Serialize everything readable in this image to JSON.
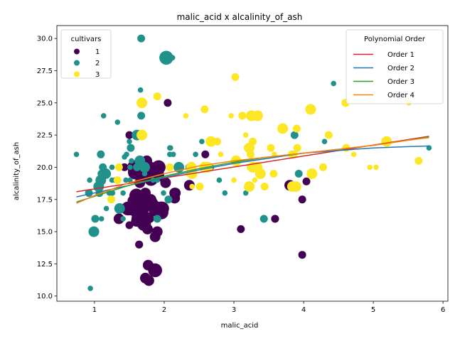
{
  "chart_data": {
    "type": "scatter",
    "title": "malic_acid x alcalinity_of_ash",
    "xlabel": "malic_acid",
    "ylabel": "alcalinity_of_ash",
    "xlim": [
      0.46,
      6.07
    ],
    "ylim": [
      9.6,
      31.0
    ],
    "xticks": [
      1,
      2,
      3,
      4,
      5,
      6
    ],
    "yticks": [
      10.0,
      12.5,
      15.0,
      17.5,
      20.0,
      22.5,
      25.0,
      27.5,
      30.0
    ],
    "ytick_labels": [
      "10.0",
      "12.5",
      "15.0",
      "17.5",
      "20.0",
      "22.5",
      "25.0",
      "27.5",
      "30.0"
    ],
    "grid": false,
    "legends": [
      {
        "title": "cultivars",
        "placement": "upper left",
        "entries": [
          {
            "label": "1",
            "color": "#440154"
          },
          {
            "label": "2",
            "color": "#21918c"
          },
          {
            "label": "3",
            "color": "#fde725"
          }
        ]
      },
      {
        "title": "Polynomial Order",
        "placement": "upper right",
        "entries": [
          {
            "label": "Order 1",
            "color": "#d62728"
          },
          {
            "label": "Order 2",
            "color": "#1f77b4"
          },
          {
            "label": "Order 3",
            "color": "#2ca02c"
          },
          {
            "label": "Order 4",
            "color": "#ff7f0e"
          }
        ]
      }
    ],
    "series": [
      {
        "name": "1",
        "color": "#440154",
        "points": [
          [
            1.71,
            15.6,
            3
          ],
          [
            1.78,
            11.2,
            2
          ],
          [
            2.36,
            18.6,
            2
          ],
          [
            1.95,
            16.8,
            3
          ],
          [
            2.59,
            21.0,
            1
          ],
          [
            1.76,
            15.2,
            2
          ],
          [
            1.87,
            14.6,
            2
          ],
          [
            2.15,
            17.6,
            2
          ],
          [
            1.64,
            14.0,
            1
          ],
          [
            1.35,
            16.0,
            2
          ],
          [
            2.16,
            18.0,
            2
          ],
          [
            1.48,
            16.8,
            3
          ],
          [
            1.73,
            16.0,
            3
          ],
          [
            1.73,
            11.4,
            2
          ],
          [
            1.87,
            12.0,
            3
          ],
          [
            1.81,
            17.2,
            2
          ],
          [
            1.92,
            20.0,
            3
          ],
          [
            1.57,
            20.0,
            3
          ],
          [
            1.59,
            16.5,
            2
          ],
          [
            3.1,
            15.2,
            1
          ],
          [
            1.63,
            16.0,
            3
          ],
          [
            3.8,
            18.6,
            2
          ],
          [
            1.86,
            16.6,
            2
          ],
          [
            1.6,
            17.8,
            3
          ],
          [
            1.81,
            20.0,
            2
          ],
          [
            2.05,
            25.0,
            1
          ],
          [
            1.77,
            16.1,
            2
          ],
          [
            1.72,
            17.0,
            3
          ],
          [
            1.9,
            19.4,
            3
          ],
          [
            1.68,
            16.0,
            3
          ],
          [
            1.5,
            22.5,
            1
          ],
          [
            1.66,
            17.0,
            3
          ],
          [
            1.83,
            17.2,
            2
          ],
          [
            1.53,
            16.8,
            3
          ],
          [
            1.8,
            16.0,
            1
          ],
          [
            1.81,
            17.5,
            2
          ],
          [
            1.64,
            14.0,
            1
          ],
          [
            1.65,
            18.8,
            2
          ],
          [
            1.5,
            15.5,
            1
          ],
          [
            3.59,
            16.0,
            1
          ],
          [
            1.81,
            17.2,
            3
          ],
          [
            3.98,
            17.5,
            1
          ],
          [
            1.77,
            12.4,
            2
          ],
          [
            4.04,
            18.9,
            1
          ],
          [
            3.59,
            16.0,
            1
          ],
          [
            1.68,
            16.0,
            3
          ],
          [
            2.02,
            18.8,
            2
          ],
          [
            1.73,
            17.4,
            3
          ],
          [
            1.73,
            18.0,
            2
          ],
          [
            1.65,
            19.4,
            2
          ],
          [
            1.75,
            20.5,
            2
          ],
          [
            1.9,
            15.0,
            2
          ],
          [
            1.67,
            16.0,
            2
          ],
          [
            1.73,
            19.4,
            2
          ],
          [
            1.7,
            17.4,
            3
          ],
          [
            1.97,
            16.8,
            3
          ],
          [
            1.43,
            20.0,
            1
          ],
          [
            1.81,
            19.1,
            3
          ],
          [
            1.58,
            19.6,
            3
          ],
          [
            1.98,
            16.8,
            2
          ],
          [
            1.62,
            16.5,
            2
          ],
          [
            3.98,
            13.2,
            1
          ],
          [
            1.55,
            17.4,
            2
          ],
          [
            2.15,
            18.0,
            2
          ],
          [
            1.87,
            17.0,
            2
          ],
          [
            1.96,
            16.5,
            3
          ],
          [
            1.6,
            15.8,
            2
          ],
          [
            1.71,
            16.2,
            2
          ]
        ]
      },
      {
        "name": "2",
        "color": "#21918c",
        "points": [
          [
            0.94,
            10.6,
            0
          ],
          [
            1.1,
            16.0,
            0
          ],
          [
            1.36,
            16.8,
            2
          ],
          [
            1.25,
            18.0,
            0
          ],
          [
            1.13,
            20.0,
            0
          ],
          [
            1.45,
            19.0,
            0
          ],
          [
            1.21,
            18.0,
            0
          ],
          [
            1.01,
            16.0,
            1
          ],
          [
            1.17,
            16.8,
            0
          ],
          [
            0.92,
            18.0,
            1
          ],
          [
            1.13,
            24.0,
            0
          ],
          [
            1.67,
            30.0,
            1
          ],
          [
            0.74,
            21.0,
            0
          ],
          [
            1.66,
            25.0,
            0
          ],
          [
            1.61,
            22.5,
            2
          ],
          [
            1.67,
            24.0,
            1
          ],
          [
            1.09,
            21.0,
            1
          ],
          [
            1.51,
            20.0,
            0
          ],
          [
            1.52,
            21.5,
            1
          ],
          [
            1.06,
            18.5,
            2
          ],
          [
            1.09,
            18.5,
            0
          ],
          [
            1.12,
            20.0,
            1
          ],
          [
            1.25,
            19.0,
            0
          ],
          [
            0.99,
            15.0,
            2
          ],
          [
            3.87,
            22.5,
            1
          ],
          [
            0.99,
            14.8,
            0
          ],
          [
            1.09,
            19.0,
            2
          ],
          [
            1.61,
            20.0,
            1
          ],
          [
            1.66,
            26.0,
            0
          ],
          [
            1.65,
            20.5,
            2
          ],
          [
            0.93,
            19.0,
            0
          ],
          [
            1.33,
            23.5,
            0
          ],
          [
            1.41,
            18.0,
            0
          ],
          [
            1.41,
            16.0,
            0
          ],
          [
            1.07,
            18.0,
            1
          ],
          [
            2.08,
            21.0,
            0
          ],
          [
            2.08,
            21.5,
            0
          ],
          [
            1.25,
            20.0,
            0
          ],
          [
            1.29,
            19.0,
            0
          ],
          [
            1.26,
            18.0,
            0
          ],
          [
            4.43,
            26.5,
            0
          ],
          [
            2.03,
            28.5,
            3
          ],
          [
            1.53,
            20.5,
            0
          ],
          [
            2.09,
            21.5,
            0
          ],
          [
            1.65,
            22.5,
            1
          ],
          [
            1.72,
            20.0,
            2
          ],
          [
            1.43,
            20.8,
            0
          ],
          [
            3.43,
            16.0,
            1
          ],
          [
            1.24,
            18.0,
            0
          ],
          [
            2.36,
            20.0,
            1
          ],
          [
            1.9,
            16.0,
            1
          ],
          [
            1.63,
            20.0,
            0
          ],
          [
            1.72,
            19.5,
            0
          ],
          [
            2.13,
            21.0,
            0
          ],
          [
            2.54,
            22.0,
            0
          ],
          [
            1.1,
            19.5,
            1
          ],
          [
            1.16,
            19.5,
            2
          ],
          [
            1.9,
            19.0,
            0
          ],
          [
            1.84,
            19.0,
            0
          ],
          [
            2.06,
            17.5,
            1
          ],
          [
            3.93,
            19.5,
            1
          ],
          [
            5.8,
            21.5,
            0
          ],
          [
            1.01,
            15.0,
            1
          ],
          [
            2.45,
            21.0,
            0
          ],
          [
            0.98,
            15.0,
            0
          ],
          [
            1.61,
            20.0,
            1
          ],
          [
            2.12,
            28.5,
            0
          ],
          [
            1.99,
            18.0,
            0
          ],
          [
            1.51,
            19.0,
            0
          ],
          [
            2.21,
            20.0,
            2
          ],
          [
            2.87,
            18.0,
            0
          ],
          [
            3.17,
            18.0,
            0
          ],
          [
            2.79,
            19.0,
            0
          ],
          [
            2.68,
            20.0,
            0
          ],
          [
            1.19,
            19.5,
            0
          ],
          [
            1.46,
            21.0,
            0
          ],
          [
            1.5,
            22.0,
            0
          ],
          [
            4.3,
            22.0,
            0
          ],
          [
            3.86,
            22.5,
            0
          ]
        ]
      },
      {
        "name": "3",
        "color": "#fde725",
        "points": [
          [
            2.56,
            20.0,
            1
          ],
          [
            2.51,
            18.5,
            1
          ],
          [
            2.39,
            20.0,
            2
          ],
          [
            3.02,
            27.0,
            1
          ],
          [
            3.86,
            21.0,
            1
          ],
          [
            4.6,
            25.0,
            1
          ],
          [
            4.95,
            20.0,
            0
          ],
          [
            4.12,
            19.5,
            1
          ],
          [
            3.03,
            20.5,
            2
          ],
          [
            3.83,
            21.0,
            1
          ],
          [
            1.68,
            25.0,
            2
          ],
          [
            3.22,
            21.5,
            2
          ],
          [
            2.58,
            24.5,
            1
          ],
          [
            4.61,
            21.5,
            1
          ],
          [
            3.34,
            24.0,
            2
          ],
          [
            5.65,
            20.5,
            1
          ],
          [
            3.24,
            21.0,
            1
          ],
          [
            3.91,
            21.5,
            1
          ],
          [
            2.58,
            20.0,
            2
          ],
          [
            3.37,
            20.0,
            0
          ],
          [
            3.38,
            19.5,
            2
          ],
          [
            3.7,
            23.0,
            2
          ],
          [
            3.2,
            21.5,
            1
          ],
          [
            3.3,
            19.0,
            0
          ],
          [
            4.1,
            24.5,
            2
          ],
          [
            3.9,
            23.0,
            1
          ],
          [
            3.12,
            24.0,
            1
          ],
          [
            3.17,
            22.5,
            0
          ],
          [
            3.57,
            19.5,
            1
          ],
          [
            3.84,
            18.5,
            2
          ],
          [
            2.4,
            18.5,
            0
          ],
          [
            4.12,
            19.5,
            2
          ],
          [
            3.58,
            21.0,
            0
          ],
          [
            1.35,
            20.0,
            1
          ],
          [
            4.6,
            25.0,
            1
          ],
          [
            3.25,
            24.0,
            2
          ],
          [
            5.19,
            22.0,
            2
          ],
          [
            4.28,
            20.0,
            1
          ],
          [
            1.24,
            17.5,
            1
          ],
          [
            3.53,
            21.5,
            1
          ],
          [
            1.9,
            25.5,
            1
          ],
          [
            2.08,
            20.0,
            1
          ],
          [
            2.67,
            22.0,
            2
          ],
          [
            1.68,
            22.5,
            2
          ],
          [
            2.76,
            22.0,
            1
          ],
          [
            3.44,
            18.5,
            1
          ],
          [
            5.04,
            20.0,
            0
          ],
          [
            3.27,
            22.0,
            1
          ],
          [
            3.89,
            18.5,
            2
          ],
          [
            3.24,
            20.0,
            1
          ],
          [
            2.96,
            24.0,
            0
          ],
          [
            3.33,
            20.0,
            2
          ],
          [
            1.33,
            19.0,
            1
          ],
          [
            4.36,
            22.5,
            1
          ],
          [
            2.31,
            24.0,
            0
          ],
          [
            3.22,
            18.5,
            2
          ],
          [
            2.4,
            19.5,
            2
          ],
          [
            2.34,
            19.5,
            0
          ],
          [
            4.72,
            21.0,
            0
          ],
          [
            5.51,
            25.0,
            0
          ],
          [
            3.27,
            20.0,
            2
          ],
          [
            2.81,
            21.0,
            0
          ],
          [
            2.62,
            20.0,
            2
          ],
          [
            2.65,
            22.0,
            1
          ],
          [
            3.0,
            19.0,
            0
          ]
        ]
      }
    ],
    "fit_lines": [
      {
        "name": "Order 1",
        "color": "#d62728",
        "x": [
          0.74,
          5.8
        ],
        "y": [
          18.1,
          22.4
        ]
      },
      {
        "name": "Order 2",
        "color": "#1f77b4",
        "x": [
          0.74,
          1.5,
          2.0,
          2.5,
          3.0,
          3.5,
          4.0,
          4.5,
          5.0,
          5.5,
          5.8
        ],
        "y": [
          17.7,
          18.6,
          19.2,
          19.8,
          20.3,
          20.7,
          21.1,
          21.3,
          21.5,
          21.6,
          21.65
        ]
      },
      {
        "name": "Order 3",
        "color": "#2ca02c",
        "x": [
          0.74,
          1.5,
          2.0,
          2.5,
          3.0,
          3.5,
          4.0,
          4.5,
          5.0,
          5.5,
          5.8
        ],
        "y": [
          17.3,
          18.6,
          19.3,
          19.9,
          20.4,
          20.8,
          21.1,
          21.4,
          21.7,
          22.1,
          22.35
        ]
      },
      {
        "name": "Order 4",
        "color": "#ff7f0e",
        "x": [
          0.74,
          1.0,
          1.5,
          2.0,
          2.5,
          3.0,
          3.5,
          4.0,
          4.5,
          5.0,
          5.5,
          5.8
        ],
        "y": [
          17.2,
          17.8,
          18.8,
          19.5,
          20.1,
          20.5,
          20.8,
          21.1,
          21.4,
          21.7,
          22.1,
          22.3
        ]
      }
    ]
  }
}
